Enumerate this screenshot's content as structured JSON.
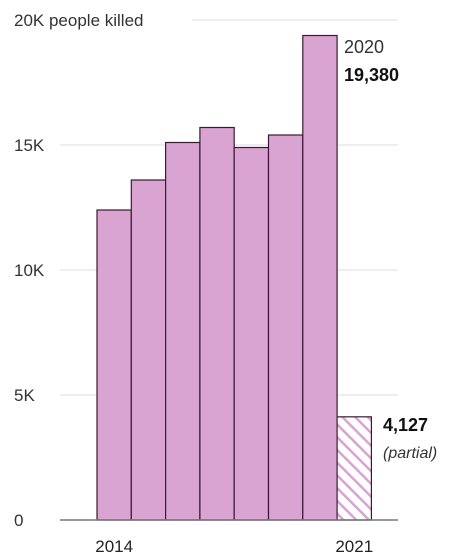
{
  "chart_data": {
    "type": "bar",
    "ylabel": "20K people killed",
    "y_ticks": [
      {
        "value": 0,
        "label": "0"
      },
      {
        "value": 5000,
        "label": "5K"
      },
      {
        "value": 10000,
        "label": "10K"
      },
      {
        "value": 15000,
        "label": "15K"
      },
      {
        "value": 20000,
        "label": "20K people killed"
      }
    ],
    "ylim": [
      0,
      20000
    ],
    "x_labels": [
      {
        "year": 2014,
        "label": "2014"
      },
      {
        "year": 2021,
        "label": "2021"
      }
    ],
    "bars": [
      {
        "year": 2014,
        "value": 12400,
        "partial": false
      },
      {
        "year": 2015,
        "value": 13600,
        "partial": false
      },
      {
        "year": 2016,
        "value": 15100,
        "partial": false
      },
      {
        "year": 2017,
        "value": 15700,
        "partial": false
      },
      {
        "year": 2018,
        "value": 14900,
        "partial": false
      },
      {
        "year": 2019,
        "value": 15400,
        "partial": false
      },
      {
        "year": 2020,
        "value": 19380,
        "partial": false
      },
      {
        "year": 2021,
        "value": 4127,
        "partial": true
      }
    ],
    "grid": true,
    "colors": {
      "bar_fill": "#d9a3d2",
      "bar_stroke": "#3a1a33",
      "hatch_stroke": "#d9a3d2"
    },
    "annotations": {
      "peak_year": "2020",
      "peak_value": "19,380",
      "partial_value": "4,127",
      "partial_note": "(partial)"
    }
  }
}
